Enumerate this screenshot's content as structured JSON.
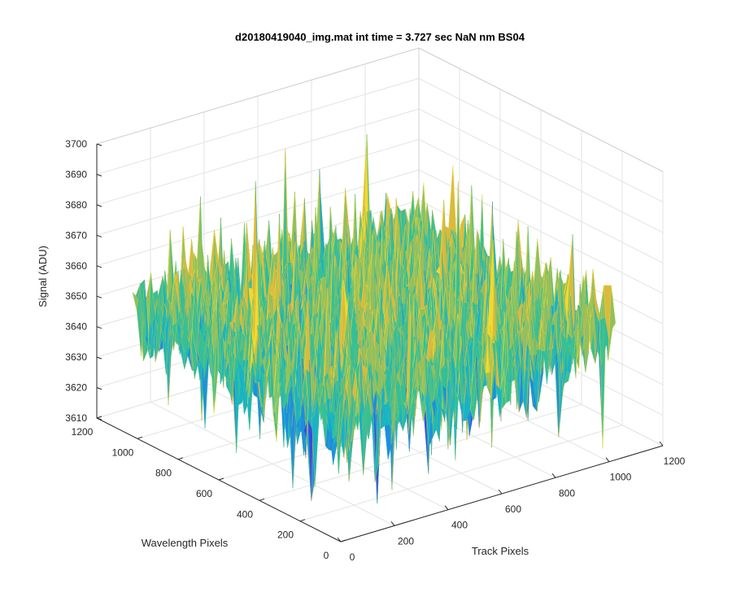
{
  "chart_data": {
    "type": "surface",
    "title": "d20180419040_img.mat int time = 3.727 sec  NaN nm BS04",
    "xlabel": "Track Pixels",
    "ylabel": "Wavelength Pixels",
    "zlabel": "Signal (ADU)",
    "xlim": [
      0,
      1200
    ],
    "ylim": [
      0,
      1200
    ],
    "zlim": [
      3610,
      3700
    ],
    "x_ticks": [
      "0",
      "200",
      "400",
      "600",
      "800",
      "1000",
      "1200"
    ],
    "y_ticks": [
      "0",
      "200",
      "400",
      "600",
      "800",
      "1000",
      "1200"
    ],
    "z_ticks": [
      "3610",
      "3620",
      "3630",
      "3640",
      "3650",
      "3660",
      "3670",
      "3680",
      "3690",
      "3700"
    ],
    "data_extent": {
      "x": [
        0,
        1024
      ],
      "y": [
        0,
        1024
      ]
    },
    "signal": {
      "mean": 3650,
      "min": 3615,
      "max": 3698,
      "typical_range": [
        3630,
        3670
      ]
    },
    "grid": true,
    "colormap": [
      "#3a4ae0",
      "#1f8de0",
      "#17b3c8",
      "#35c096",
      "#90c060",
      "#d9ba3e",
      "#f2d92d"
    ]
  }
}
